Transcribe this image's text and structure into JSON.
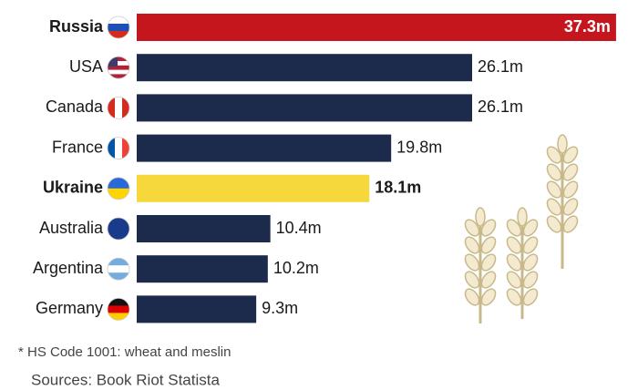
{
  "chart_data": {
    "type": "bar",
    "orientation": "horizontal",
    "categories": [
      "Russia",
      "USA",
      "Canada",
      "France",
      "Ukraine",
      "Australia",
      "Argentina",
      "Germany"
    ],
    "values": [
      37.3,
      26.1,
      26.1,
      19.8,
      18.1,
      10.4,
      10.2,
      9.3
    ],
    "value_labels": [
      "37.3m",
      "26.1m",
      "26.1m",
      "19.8m",
      "18.1m",
      "10.4m",
      "10.2m",
      "9.3m"
    ],
    "colors": [
      "#c5161d",
      "#1c2b4b",
      "#1c2b4b",
      "#1c2b4b",
      "#f6d73c",
      "#1c2b4b",
      "#1c2b4b",
      "#1c2b4b"
    ],
    "bold": [
      true,
      false,
      false,
      false,
      true,
      false,
      false,
      false
    ],
    "note": "* HS Code 1001: wheat and meslin",
    "source": "Sources: Book Riot Statista"
  }
}
